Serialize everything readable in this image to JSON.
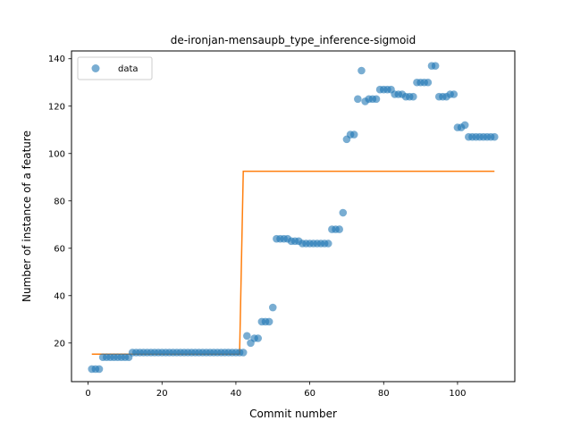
{
  "chart_data": {
    "type": "scatter",
    "title": "de-ironjan-mensaupb_type_inference-sigmoid",
    "xlabel": "Commit number",
    "ylabel": "Number of instance of a feature",
    "xlim": [
      -4.5,
      115.5
    ],
    "ylim": [
      3.7,
      143.3
    ],
    "xticks": [
      0,
      20,
      40,
      60,
      80,
      100
    ],
    "yticks": [
      20,
      40,
      60,
      80,
      100,
      120,
      140
    ],
    "legend": {
      "position": "top-left",
      "entries": [
        "data"
      ]
    },
    "grid": false,
    "colors": {
      "data": "#1f77b4",
      "fit": "#ff7f0e"
    },
    "series": [
      {
        "name": "data",
        "kind": "scatter",
        "x": [
          1,
          2,
          3,
          4,
          5,
          6,
          7,
          8,
          9,
          10,
          11,
          12,
          13,
          14,
          15,
          16,
          17,
          18,
          19,
          20,
          21,
          22,
          23,
          24,
          25,
          26,
          27,
          28,
          29,
          30,
          31,
          32,
          33,
          34,
          35,
          36,
          37,
          38,
          39,
          40,
          41,
          42,
          43,
          44,
          45,
          46,
          47,
          48,
          49,
          50,
          51,
          52,
          53,
          54,
          55,
          56,
          57,
          58,
          59,
          60,
          61,
          62,
          63,
          64,
          65,
          66,
          67,
          68,
          69,
          70,
          71,
          72,
          73,
          74,
          75,
          76,
          77,
          78,
          79,
          80,
          81,
          82,
          83,
          84,
          85,
          86,
          87,
          88,
          89,
          90,
          91,
          92,
          93,
          94,
          95,
          96,
          97,
          98,
          99,
          100,
          101,
          102,
          103,
          104,
          105,
          106,
          107,
          108,
          109,
          110
        ],
        "y": [
          9,
          9,
          9,
          14,
          14,
          14,
          14,
          14,
          14,
          14,
          14,
          16,
          16,
          16,
          16,
          16,
          16,
          16,
          16,
          16,
          16,
          16,
          16,
          16,
          16,
          16,
          16,
          16,
          16,
          16,
          16,
          16,
          16,
          16,
          16,
          16,
          16,
          16,
          16,
          16,
          16,
          16,
          23,
          20,
          22,
          22,
          29,
          29,
          29,
          35,
          64,
          64,
          64,
          64,
          63,
          63,
          63,
          62,
          62,
          62,
          62,
          62,
          62,
          62,
          62,
          68,
          68,
          68,
          75,
          106,
          108,
          108,
          123,
          135,
          122,
          123,
          123,
          123,
          127,
          127,
          127,
          127,
          125,
          125,
          125,
          124,
          124,
          124,
          130,
          130,
          130,
          130,
          137,
          137,
          124,
          124,
          124,
          125,
          125,
          111,
          111,
          112,
          107,
          107,
          107,
          107,
          107,
          107,
          107,
          107
        ]
      },
      {
        "name": "",
        "kind": "line",
        "x": [
          1,
          41,
          42,
          110
        ],
        "y": [
          15.3,
          15.3,
          92.5,
          92.5
        ]
      }
    ]
  }
}
